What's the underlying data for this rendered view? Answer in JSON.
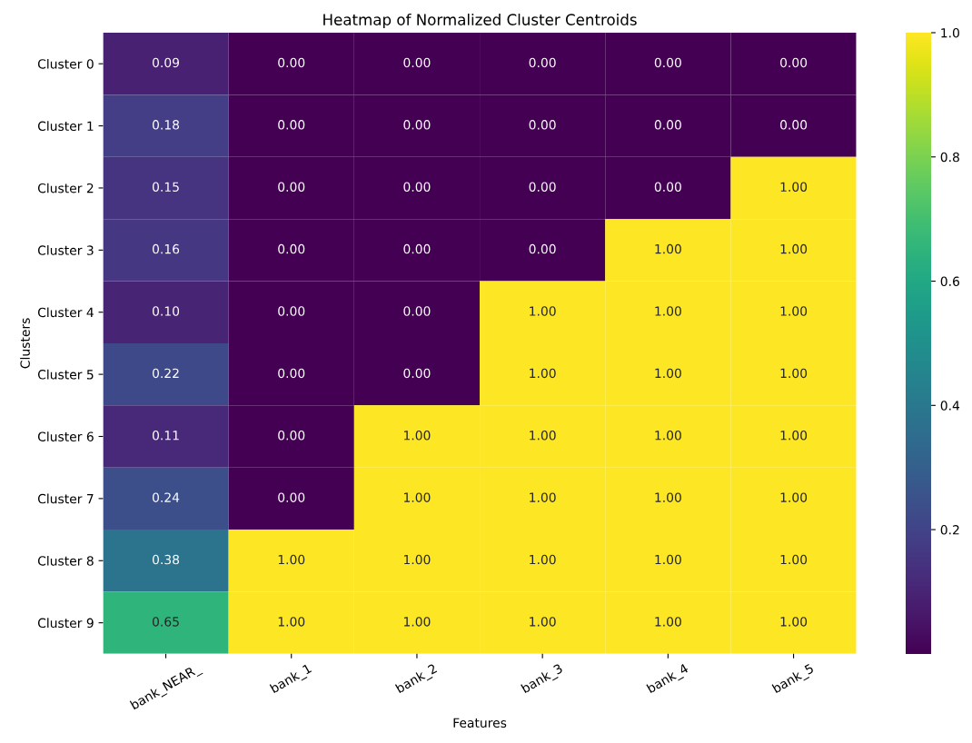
{
  "chart_data": {
    "type": "heatmap",
    "title": "Heatmap of Normalized Cluster Centroids",
    "xlabel": "Features",
    "ylabel": "Clusters",
    "categories": [
      "bank_NEAR_",
      "bank_1",
      "bank_2",
      "bank_3",
      "bank_4",
      "bank_5"
    ],
    "y_categories": [
      "Cluster 0",
      "Cluster 1",
      "Cluster 2",
      "Cluster 3",
      "Cluster 4",
      "Cluster 5",
      "Cluster 6",
      "Cluster 7",
      "Cluster 8",
      "Cluster 9"
    ],
    "cells": [
      [
        0.09,
        0,
        0,
        0,
        0,
        0
      ],
      [
        0.18,
        0,
        0,
        0,
        0,
        0
      ],
      [
        0.15,
        0,
        0,
        0,
        0,
        1
      ],
      [
        0.16,
        0,
        0,
        0,
        1,
        1
      ],
      [
        0.1,
        0,
        0,
        1,
        1,
        1
      ],
      [
        0.22,
        0,
        0,
        1,
        1,
        1
      ],
      [
        0.11,
        0,
        1,
        1,
        1,
        1
      ],
      [
        0.24,
        0,
        1,
        1,
        1,
        1
      ],
      [
        0.38,
        1,
        1,
        1,
        1,
        1
      ],
      [
        0.65,
        1,
        1,
        1,
        1,
        1
      ]
    ],
    "cell_labels": [
      [
        "0.09",
        "0.00",
        "0.00",
        "0.00",
        "0.00",
        "0.00"
      ],
      [
        "0.18",
        "0.00",
        "0.00",
        "0.00",
        "0.00",
        "0.00"
      ],
      [
        "0.15",
        "0.00",
        "0.00",
        "0.00",
        "0.00",
        "1.00"
      ],
      [
        "0.16",
        "0.00",
        "0.00",
        "0.00",
        "1.00",
        "1.00"
      ],
      [
        "0.10",
        "0.00",
        "0.00",
        "1.00",
        "1.00",
        "1.00"
      ],
      [
        "0.22",
        "0.00",
        "0.00",
        "1.00",
        "1.00",
        "1.00"
      ],
      [
        "0.11",
        "0.00",
        "1.00",
        "1.00",
        "1.00",
        "1.00"
      ],
      [
        "0.24",
        "0.00",
        "1.00",
        "1.00",
        "1.00",
        "1.00"
      ],
      [
        "0.38",
        "1.00",
        "1.00",
        "1.00",
        "1.00",
        "1.00"
      ],
      [
        "0.65",
        "1.00",
        "1.00",
        "1.00",
        "1.00",
        "1.00"
      ]
    ],
    "clim": [
      0,
      1
    ],
    "cticks": [
      {
        "value": 0.2,
        "label": "0.2"
      },
      {
        "value": 0.4,
        "label": "0.4"
      },
      {
        "value": 0.6,
        "label": "0.6"
      },
      {
        "value": 0.8,
        "label": "0.8"
      },
      {
        "value": 1.0,
        "label": "1.0"
      }
    ]
  }
}
